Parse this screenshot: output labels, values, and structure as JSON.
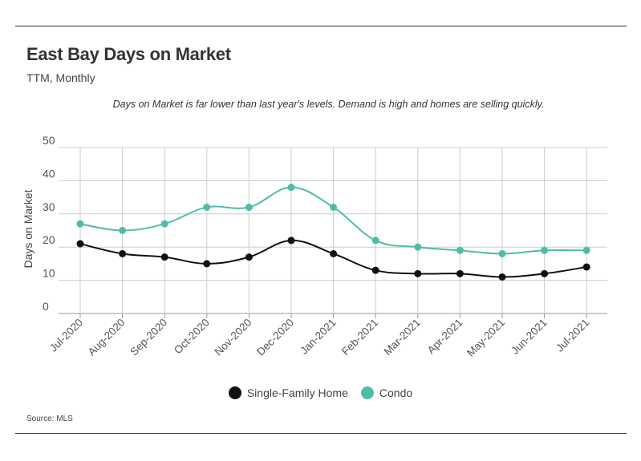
{
  "header": {
    "title": "East Bay Days on Market",
    "subtitle": "TTM, Monthly",
    "note": "Days on Market is far lower than last year's levels. Demand is high and homes are selling quickly."
  },
  "footer": {
    "source": "Source:  MLS"
  },
  "colors": {
    "single_family": "#111111",
    "condo": "#4fbcaa",
    "grid": "#cccccc",
    "axis_text": "#555555"
  },
  "chart_data": {
    "type": "line",
    "title": "East Bay Days on Market",
    "subtitle": "TTM, Monthly",
    "xlabel": "",
    "ylabel": "Days on Market",
    "ylim": [
      0,
      50
    ],
    "yticks": [
      0,
      10,
      20,
      30,
      40,
      50
    ],
    "grid": true,
    "legend_position": "bottom-center",
    "categories": [
      "Jul-2020",
      "Aug-2020",
      "Sep-2020",
      "Oct-2020",
      "Nov-2020",
      "Dec-2020",
      "Jan-2021",
      "Feb-2021",
      "Mar-2021",
      "Apr-2021",
      "May-2021",
      "Jun-2021",
      "Jul-2021"
    ],
    "series": [
      {
        "name": "Single-Family Home",
        "color": "#111111",
        "values": [
          21,
          18,
          17,
          15,
          17,
          22,
          18,
          13,
          12,
          12,
          11,
          12,
          14
        ]
      },
      {
        "name": "Condo",
        "color": "#4fbcaa",
        "values": [
          27,
          25,
          27,
          32,
          32,
          38,
          32,
          22,
          20,
          19,
          18,
          19,
          19
        ]
      }
    ]
  }
}
